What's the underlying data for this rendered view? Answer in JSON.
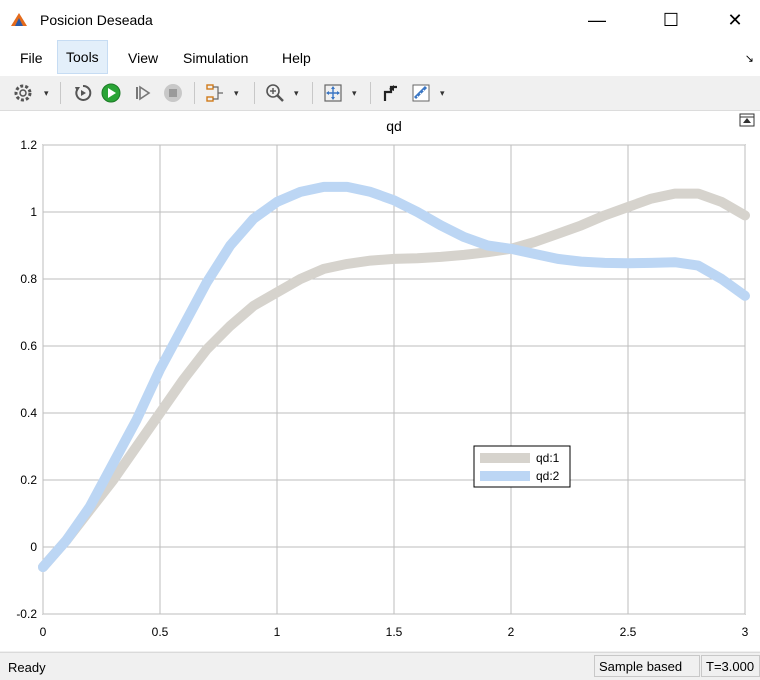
{
  "window": {
    "title": "Posicion Deseada",
    "minimize_glyph": "—",
    "maximize_glyph": "☐",
    "close_glyph": "✕"
  },
  "menu": {
    "items": [
      "File",
      "Tools",
      "View",
      "Simulation",
      "Help"
    ],
    "active": "Tools",
    "overflow_glyph": "↘"
  },
  "toolbar": {
    "icons": [
      "settings-icon",
      "step-back-icon",
      "run-icon",
      "step-forward-icon",
      "stop-icon",
      "signal-selector-icon",
      "zoom-icon",
      "fit-to-view-icon",
      "cursor-measure-icon",
      "measurements-icon"
    ]
  },
  "colors": {
    "series1": "#d6d3cd",
    "series2": "#bcd6f4",
    "run_button": "#2aa436",
    "app_icon": "#e46b1c"
  },
  "chart_data": {
    "type": "line",
    "title": "qd",
    "xlabel": "",
    "ylabel": "",
    "xlim": [
      0,
      3
    ],
    "ylim": [
      -0.2,
      1.2
    ],
    "xticks": [
      "0",
      "0.5",
      "1",
      "1.5",
      "2",
      "2.5",
      "3"
    ],
    "yticks": [
      "-0.2",
      "0",
      "0.2",
      "0.4",
      "0.6",
      "0.8",
      "1",
      "1.2"
    ],
    "grid": true,
    "legend_position": "center-right",
    "x": [
      0,
      0.1,
      0.2,
      0.3,
      0.4,
      0.5,
      0.6,
      0.7,
      0.8,
      0.9,
      1.0,
      1.1,
      1.2,
      1.3,
      1.4,
      1.5,
      1.6,
      1.7,
      1.8,
      1.9,
      2.0,
      2.1,
      2.2,
      2.3,
      2.4,
      2.5,
      2.6,
      2.7,
      2.8,
      2.9,
      3.0
    ],
    "series": [
      {
        "name": "qd:1",
        "values": [
          -0.06,
          0.02,
          0.11,
          0.2,
          0.3,
          0.4,
          0.5,
          0.59,
          0.66,
          0.72,
          0.76,
          0.8,
          0.83,
          0.845,
          0.855,
          0.86,
          0.862,
          0.866,
          0.872,
          0.88,
          0.89,
          0.91,
          0.935,
          0.96,
          0.99,
          1.015,
          1.04,
          1.055,
          1.055,
          1.03,
          0.99
        ]
      },
      {
        "name": "qd:2",
        "values": [
          -0.06,
          0.02,
          0.12,
          0.25,
          0.38,
          0.53,
          0.66,
          0.79,
          0.9,
          0.98,
          1.03,
          1.06,
          1.075,
          1.075,
          1.06,
          1.035,
          1.0,
          0.96,
          0.925,
          0.9,
          0.89,
          0.875,
          0.86,
          0.852,
          0.848,
          0.847,
          0.848,
          0.85,
          0.84,
          0.8,
          0.75
        ]
      }
    ]
  },
  "status": {
    "text": "Ready",
    "sample_mode": "Sample based",
    "time": "T=3.000"
  }
}
